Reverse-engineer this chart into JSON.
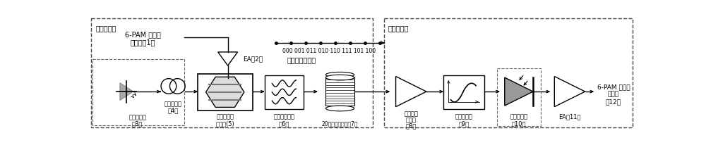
{
  "bg_color": "#ffffff",
  "title_lt": "光线路终端",
  "title_rt": "光网络单元",
  "tx_label1": "6-PAM 电信号",
  "tx_label2": "发送机（1）",
  "ea2_label": "EA（2）",
  "laser_label1": "外腔激光器",
  "laser_label2": "（3）",
  "polar_label1": "偏振控制器",
  "polar_label2": "（4）",
  "mzm_label1": "马赫曾德尔",
  "mzm_label2": "调制器(5)",
  "bpf_label1": "光带通滤波器",
  "bpf_label2": "（6）",
  "fiber_label": "20千米单模光纤（7）",
  "edfa_label1": "掺铒光纤",
  "edfa_label2": "放大器",
  "edfa_label3": "（8）",
  "lpf_label1": "低通滤波器",
  "lpf_label2": "（9）",
  "pd_label1": "光电检测器",
  "pd_label2": "（10）",
  "ea11_label": "EA（11）",
  "rx_label1": "6-PAM 电信号",
  "rx_label2": "接收机",
  "rx_label3": "（12）",
  "const_label": "格雷编码星座图",
  "const_bits": "000 001 011 010·110 111 101 100"
}
